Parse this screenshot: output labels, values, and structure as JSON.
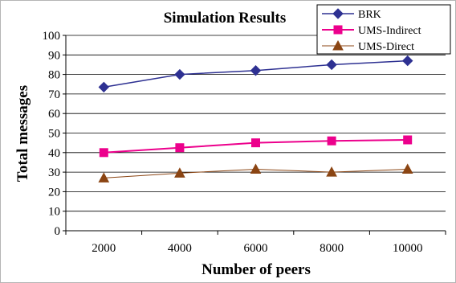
{
  "chart_data": {
    "type": "line",
    "title": "Simulation Results",
    "xlabel": "Number of peers",
    "ylabel": "Total messages",
    "categories": [
      "2000",
      "4000",
      "6000",
      "8000",
      "10000"
    ],
    "ylim": [
      0,
      100
    ],
    "yticks": [
      0,
      10,
      20,
      30,
      40,
      50,
      60,
      70,
      80,
      90,
      100
    ],
    "ytick_labels": [
      "0",
      "10",
      "20",
      "30",
      "40",
      "50",
      "60",
      "70",
      "80",
      "90",
      "100"
    ],
    "xtick_labels": [
      "2000",
      "4000",
      "6000",
      "8000",
      "10000"
    ],
    "grid": true,
    "legend_position": "top-right",
    "series": [
      {
        "name": "BRK",
        "values": [
          73.5,
          80,
          82,
          85,
          87
        ],
        "color": "#2e3192",
        "marker": "diamond"
      },
      {
        "name": "UMS-Indirect",
        "values": [
          40,
          42.5,
          45,
          46,
          46.5
        ],
        "color": "#ec008c",
        "marker": "square"
      },
      {
        "name": "UMS-Direct",
        "values": [
          27,
          29.5,
          31.5,
          30,
          31.5
        ],
        "color": "#8b4513",
        "marker": "triangle"
      }
    ]
  }
}
